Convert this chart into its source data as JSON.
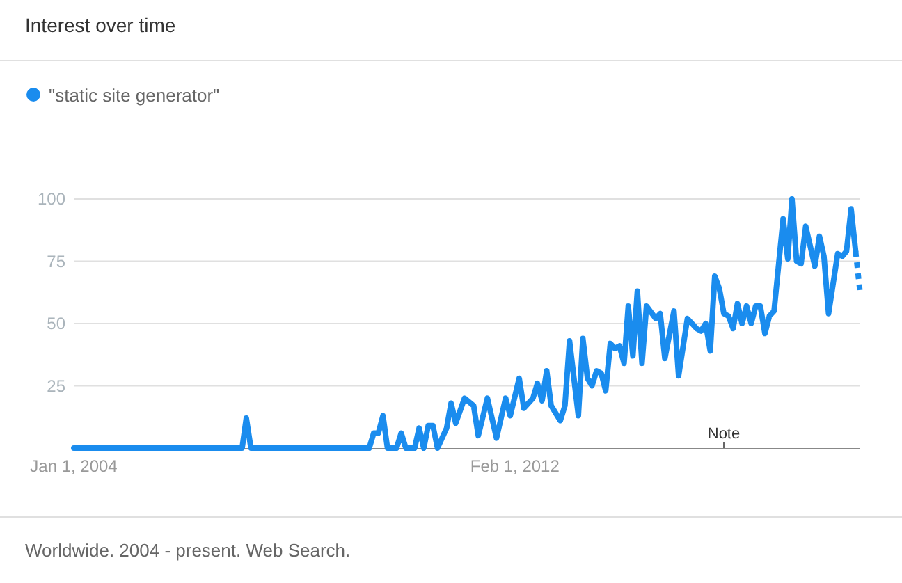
{
  "chart_data": {
    "type": "line",
    "title": "Interest over time",
    "annotations": [
      "Worldwide. 2004 - present. Web Search.",
      "Note"
    ],
    "x": [
      "2004-01",
      "2007-02",
      "2007-03",
      "2007-04",
      "2009-06",
      "2009-07",
      "2009-08",
      "2009-09",
      "2009-10",
      "2009-12",
      "2010-01",
      "2010-02",
      "2010-04",
      "2010-05",
      "2010-06",
      "2010-07",
      "2010-08",
      "2010-09",
      "2010-11",
      "2010-12",
      "2011-01",
      "2011-03",
      "2011-05",
      "2011-06",
      "2011-08",
      "2011-10",
      "2011-12",
      "2012-01",
      "2012-03",
      "2012-04",
      "2012-06",
      "2012-07",
      "2012-08",
      "2012-09",
      "2012-10",
      "2012-12",
      "2013-01",
      "2013-02",
      "2013-04",
      "2013-05",
      "2013-06",
      "2013-07",
      "2013-08",
      "2013-09",
      "2013-10",
      "2013-11",
      "2013-12",
      "2014-01",
      "2014-02",
      "2014-03",
      "2014-04",
      "2014-05",
      "2014-06",
      "2014-07",
      "2014-09",
      "2014-10",
      "2014-11",
      "2015-01",
      "2015-02",
      "2015-04",
      "2015-06",
      "2015-07",
      "2015-08",
      "2015-09",
      "2015-10",
      "2015-11",
      "2015-12",
      "2016-01",
      "2016-02",
      "2016-03",
      "2016-04",
      "2016-05",
      "2016-06",
      "2016-07",
      "2016-08",
      "2016-09",
      "2016-10",
      "2016-11",
      "2017-01",
      "2017-02",
      "2017-03",
      "2017-04",
      "2017-05",
      "2017-06",
      "2017-08",
      "2017-09",
      "2017-10",
      "2017-11",
      "2018-01",
      "2018-02",
      "2018-03",
      "2018-04",
      "2018-05"
    ],
    "series": [
      {
        "name": "\"static site generator\"",
        "color": "#1a8cee",
        "line_style": "solid",
        "values": [
          0,
          0,
          12,
          0,
          0,
          6,
          6,
          13,
          0,
          0,
          6,
          0,
          0,
          8,
          0,
          9,
          9,
          0,
          8,
          18,
          10,
          20,
          17,
          5,
          20,
          4,
          20,
          13,
          28,
          16,
          20,
          26,
          19,
          31,
          17,
          11,
          17,
          43,
          13,
          44,
          28,
          25,
          31,
          30,
          23,
          42,
          40,
          41,
          34,
          57,
          37,
          63,
          34,
          57,
          52,
          54,
          36,
          55,
          29,
          52,
          48,
          47,
          50,
          39,
          69,
          64,
          54,
          53,
          48,
          58,
          50,
          57,
          50,
          57,
          57,
          46,
          53,
          55,
          92,
          76,
          100,
          75,
          74,
          89,
          73,
          85,
          77,
          54,
          78,
          77,
          79,
          96,
          79
        ]
      },
      {
        "color": "#1a8cee",
        "line_style": "dotted",
        "x": [
          "2018-05",
          "2018-06"
        ],
        "values": [
          79,
          62
        ]
      }
    ],
    "xlim": [
      "2004-01",
      "2018-06"
    ],
    "xticks": [
      {
        "value": "2004-01-01",
        "label": "Jan 1, 2004"
      },
      {
        "value": "2012-02-01",
        "label": "Feb 1, 2012"
      }
    ],
    "ylim": [
      0,
      100
    ],
    "yticks": [
      {
        "value": 0,
        "label": null
      },
      25,
      50,
      75,
      100
    ],
    "grid": "y",
    "legend": "top left",
    "marker": "none"
  }
}
